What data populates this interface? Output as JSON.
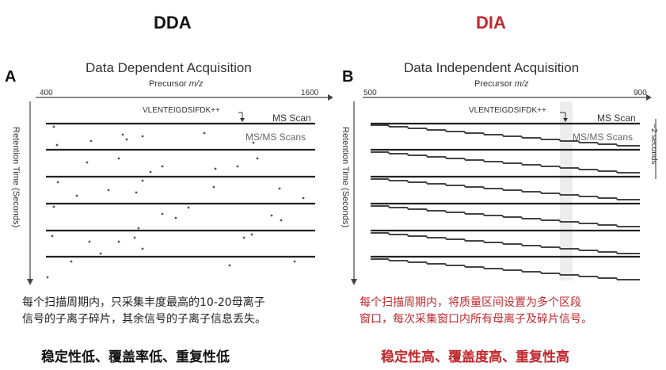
{
  "headings": {
    "left": "DDA",
    "right": "DIA"
  },
  "colors": {
    "red": "#c0282d",
    "black": "#111111"
  },
  "panel_a": {
    "letter": "A",
    "title": "Data Dependent Acquisition",
    "precursor_label": "Precursor",
    "mz_label": "m/z",
    "x_min": "400",
    "x_max": "1600",
    "peptide": "VLENTEIGDSIFDK++",
    "ms_scan": "MS Scan",
    "msms_scans": "MS/MS Scans",
    "y_label": "Retention Time (Seconds)"
  },
  "panel_b": {
    "letter": "B",
    "title": "Data Independent Acquisition",
    "precursor_label": "Precursor",
    "mz_label": "m/z",
    "x_min": "500",
    "x_max": "900",
    "peptide": "VLENTEIGDSIFDK++",
    "ms_scan": "MS Scan",
    "msms_scans": "MS/MS Scans",
    "y_label": "Retention Time (Seconds)",
    "cycle_label": "~2 seconds"
  },
  "desc_left": {
    "line1": "每个扫描周期内，只采集丰度最高的10-20母离子",
    "line2": "信号的子离子碎片，其余信号的子离子信息丢失。"
  },
  "desc_right": {
    "line1": "每个扫描周期内，将质量区间设置为多个区段",
    "line2": "窗口，每次采集窗口内所有母离子及碎片信号。"
  },
  "summary_left": "稳定性低、覆盖率低、重复性低",
  "summary_right": "稳定性高、覆盖度高、重复性高"
}
